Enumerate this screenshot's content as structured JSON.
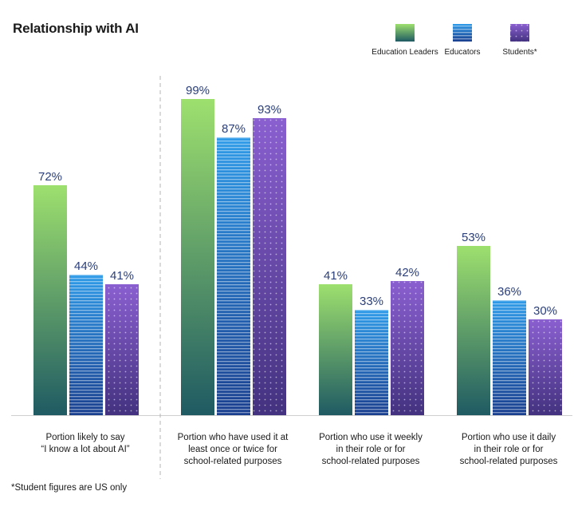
{
  "chart_data": {
    "type": "bar",
    "title": "Relationship with AI",
    "categories": [
      [
        "Portion likely to say",
        "“I know a lot about AI”"
      ],
      [
        "Portion who have used it at",
        "least once or twice for",
        "school-related purposes"
      ],
      [
        "Portion who use it weekly",
        "in their role or for",
        "school-related purposes"
      ],
      [
        "Portion who use it daily",
        "in their role or for",
        "school-related purposes"
      ]
    ],
    "series": [
      {
        "name": "Education Leaders",
        "values": [
          72,
          99,
          41,
          53
        ],
        "color_top": "#9ee06e",
        "color_bottom": "#1f5a63",
        "pattern": "none"
      },
      {
        "name": "Educators",
        "values": [
          44,
          87,
          33,
          36
        ],
        "color_top": "#2f9be8",
        "color_bottom": "#1a3f8f",
        "pattern": "lines"
      },
      {
        "name": "Students*",
        "values": [
          41,
          93,
          42,
          30
        ],
        "color_top": "#8a5fd0",
        "color_bottom": "#43327f",
        "pattern": "dots"
      }
    ],
    "value_suffix": "%",
    "ylim": [
      0,
      100
    ],
    "label_color": "#2b3f7a",
    "legend": "top-right",
    "grid": false,
    "divider_after_category": 0
  },
  "footnote": "*Student figures are US only"
}
